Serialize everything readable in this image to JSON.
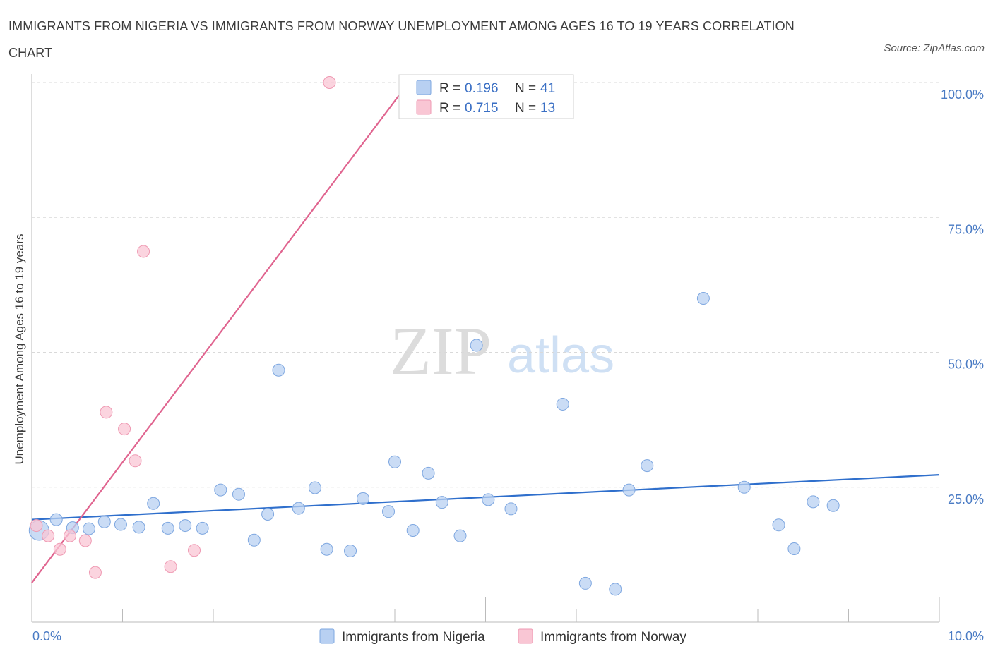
{
  "title": "IMMIGRANTS FROM NIGERIA VS IMMIGRANTS FROM NORWAY UNEMPLOYMENT AMONG AGES 16 TO 19 YEARS CORRELATION CHART",
  "source": "Source: ZipAtlas.com",
  "watermark": {
    "zip": "ZIP",
    "atlas": "atlas"
  },
  "legend_box": {
    "rows": [
      {
        "r_label": "R = ",
        "r_value": "0.196",
        "n_label": "N = ",
        "n_value": "41"
      },
      {
        "r_label": "R = ",
        "r_value": "0.715",
        "n_label": "N = ",
        "n_value": "13"
      }
    ]
  },
  "colors": {
    "nigeria_fill": "#b8d0f2",
    "nigeria_stroke": "#7ea7e0",
    "nigeria_line": "#2f6fcc",
    "norway_fill": "#f9c6d4",
    "norway_stroke": "#ef9ab3",
    "norway_line": "#e0648f",
    "grid": "#d9d9d9",
    "tick_text": "#4a7bc4"
  },
  "chart_data": {
    "type": "scatter",
    "title": "IMMIGRANTS FROM NIGERIA VS IMMIGRANTS FROM NORWAY UNEMPLOYMENT AMONG AGES 16 TO 19 YEARS CORRELATION CHART",
    "xlabel": "",
    "ylabel": "Unemployment Among Ages 16 to 19 years",
    "xlim": [
      0,
      10
    ],
    "ylim": [
      0,
      100
    ],
    "x_tick_labels": [
      "0.0%",
      "10.0%"
    ],
    "y_tick_labels": [
      "25.0%",
      "50.0%",
      "75.0%",
      "100.0%"
    ],
    "y_ticks": [
      25,
      50,
      75,
      100
    ],
    "grid": true,
    "legend_placement": "top-center",
    "series": [
      {
        "name": "Immigrants from Nigeria",
        "r": 0.196,
        "n": 41,
        "trend": {
          "x": [
            0,
            10
          ],
          "y": [
            19.0,
            27.3
          ]
        },
        "points": [
          {
            "x": 0.08,
            "y": 17.0,
            "big": true
          },
          {
            "x": 0.27,
            "y": 19.0
          },
          {
            "x": 0.45,
            "y": 17.5
          },
          {
            "x": 0.63,
            "y": 17.3
          },
          {
            "x": 0.8,
            "y": 18.6
          },
          {
            "x": 0.98,
            "y": 18.1
          },
          {
            "x": 1.18,
            "y": 17.6
          },
          {
            "x": 1.34,
            "y": 22.0
          },
          {
            "x": 1.5,
            "y": 17.4
          },
          {
            "x": 1.69,
            "y": 17.9
          },
          {
            "x": 1.88,
            "y": 17.4
          },
          {
            "x": 2.08,
            "y": 24.5
          },
          {
            "x": 2.28,
            "y": 23.7
          },
          {
            "x": 2.45,
            "y": 15.2
          },
          {
            "x": 2.6,
            "y": 20.0
          },
          {
            "x": 2.72,
            "y": 46.7
          },
          {
            "x": 2.94,
            "y": 21.1
          },
          {
            "x": 3.12,
            "y": 24.9
          },
          {
            "x": 3.25,
            "y": 13.5
          },
          {
            "x": 3.51,
            "y": 13.2
          },
          {
            "x": 3.65,
            "y": 22.9
          },
          {
            "x": 3.93,
            "y": 20.5
          },
          {
            "x": 4.0,
            "y": 29.7
          },
          {
            "x": 4.2,
            "y": 17.0
          },
          {
            "x": 4.37,
            "y": 27.6
          },
          {
            "x": 4.52,
            "y": 22.2
          },
          {
            "x": 4.72,
            "y": 16.0
          },
          {
            "x": 4.9,
            "y": 51.3
          },
          {
            "x": 5.03,
            "y": 22.7
          },
          {
            "x": 5.28,
            "y": 21.0
          },
          {
            "x": 5.85,
            "y": 40.4
          },
          {
            "x": 6.1,
            "y": 7.2
          },
          {
            "x": 6.43,
            "y": 6.1
          },
          {
            "x": 6.58,
            "y": 24.5
          },
          {
            "x": 6.78,
            "y": 29.0
          },
          {
            "x": 7.4,
            "y": 60.0
          },
          {
            "x": 7.85,
            "y": 25.0
          },
          {
            "x": 8.23,
            "y": 18.0
          },
          {
            "x": 8.4,
            "y": 13.6
          },
          {
            "x": 8.61,
            "y": 22.3
          },
          {
            "x": 8.83,
            "y": 21.6
          }
        ]
      },
      {
        "name": "Immigrants from Norway",
        "r": 0.715,
        "n": 13,
        "trend": {
          "x": [
            0,
            4.05
          ],
          "y": [
            7.3,
            97.7
          ]
        },
        "points": [
          {
            "x": 0.05,
            "y": 17.9
          },
          {
            "x": 0.18,
            "y": 16.0
          },
          {
            "x": 0.31,
            "y": 13.5
          },
          {
            "x": 0.42,
            "y": 16.0
          },
          {
            "x": 0.59,
            "y": 15.1
          },
          {
            "x": 0.7,
            "y": 9.2
          },
          {
            "x": 0.82,
            "y": 38.9
          },
          {
            "x": 1.02,
            "y": 35.8
          },
          {
            "x": 1.14,
            "y": 29.9
          },
          {
            "x": 1.23,
            "y": 68.7
          },
          {
            "x": 1.53,
            "y": 10.3
          },
          {
            "x": 1.79,
            "y": 13.3
          },
          {
            "x": 3.28,
            "y": 100.0
          }
        ]
      }
    ]
  }
}
